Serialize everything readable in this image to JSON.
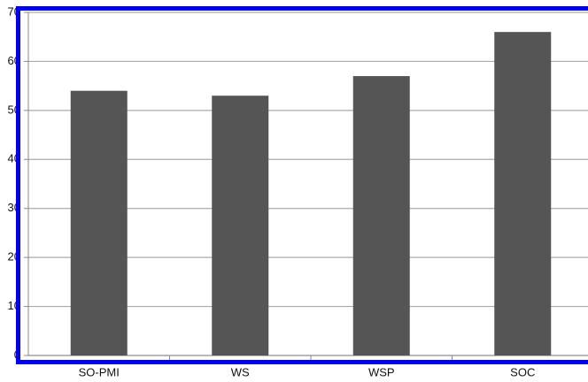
{
  "chart_data": {
    "type": "bar",
    "categories": [
      "SO-PMI",
      "WS",
      "WSP",
      "SOC"
    ],
    "values": [
      54,
      53,
      57,
      66
    ],
    "color": "#555555",
    "ylim": [
      0,
      70
    ],
    "yticks": [
      0,
      10,
      20,
      30,
      40,
      50,
      60,
      70
    ],
    "grid": true
  }
}
